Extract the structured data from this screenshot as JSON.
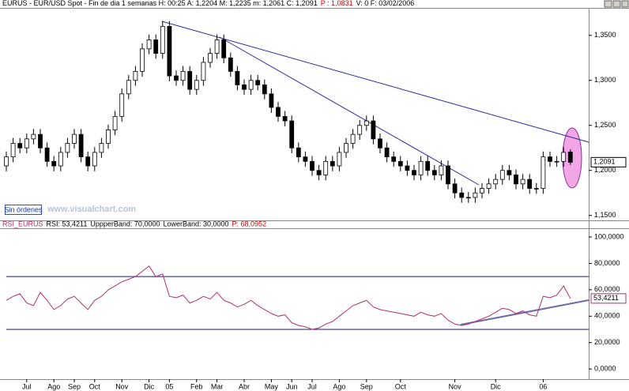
{
  "chart_data": [
    {
      "type": "candlestick",
      "title": "EURUS - EUR/USD Spot - Fin de dia 1 semanas H: 00:25 A: 1,2204 M: 1,2235 m: 1,2061 C: 1,2091",
      "title_extra": "P : 1,0831",
      "title_tail": "V: 0 F: 03/02/2006",
      "button": "Sin órdenes",
      "watermark": "www.visualchart.com",
      "up_color": "#ffffff",
      "down_color": "#000000",
      "ylim": [
        1.148,
        1.3805
      ],
      "yticks": [
        {
          "value": 1.15,
          "label": "1,1500"
        },
        {
          "value": 1.2,
          "label": "1,2000"
        },
        {
          "value": 1.25,
          "label": "1,2500"
        },
        {
          "value": 1.3,
          "label": "1,3000"
        },
        {
          "value": 1.35,
          "label": "1,3500"
        }
      ],
      "last_price": {
        "value": 1.2091,
        "label": "1,2091"
      },
      "ohlc": [
        [
          1.205,
          1.221,
          1.199,
          1.215
        ],
        [
          1.215,
          1.236,
          1.209,
          1.23
        ],
        [
          1.23,
          1.236,
          1.219,
          1.225
        ],
        [
          1.225,
          1.241,
          1.219,
          1.235
        ],
        [
          1.235,
          1.246,
          1.229,
          1.24
        ],
        [
          1.24,
          1.246,
          1.219,
          1.225
        ],
        [
          1.225,
          1.231,
          1.204,
          1.21
        ],
        [
          1.21,
          1.216,
          1.199,
          1.205
        ],
        [
          1.205,
          1.226,
          1.199,
          1.22
        ],
        [
          1.22,
          1.236,
          1.214,
          1.23
        ],
        [
          1.23,
          1.246,
          1.224,
          1.24
        ],
        [
          1.24,
          1.246,
          1.209,
          1.215
        ],
        [
          1.215,
          1.221,
          1.199,
          1.205
        ],
        [
          1.205,
          1.226,
          1.199,
          1.22
        ],
        [
          1.22,
          1.236,
          1.214,
          1.23
        ],
        [
          1.23,
          1.251,
          1.224,
          1.245
        ],
        [
          1.245,
          1.266,
          1.239,
          1.26
        ],
        [
          1.26,
          1.291,
          1.254,
          1.285
        ],
        [
          1.285,
          1.306,
          1.279,
          1.3
        ],
        [
          1.3,
          1.316,
          1.294,
          1.31
        ],
        [
          1.31,
          1.341,
          1.304,
          1.335
        ],
        [
          1.335,
          1.351,
          1.329,
          1.345
        ],
        [
          1.345,
          1.351,
          1.324,
          1.33
        ],
        [
          1.33,
          1.366,
          1.324,
          1.36
        ],
        [
          1.36,
          1.366,
          1.299,
          1.305
        ],
        [
          1.305,
          1.311,
          1.294,
          1.3
        ],
        [
          1.3,
          1.316,
          1.294,
          1.31
        ],
        [
          1.31,
          1.316,
          1.284,
          1.29
        ],
        [
          1.29,
          1.306,
          1.284,
          1.3
        ],
        [
          1.3,
          1.326,
          1.294,
          1.32
        ],
        [
          1.32,
          1.336,
          1.314,
          1.33
        ],
        [
          1.33,
          1.351,
          1.324,
          1.345
        ],
        [
          1.345,
          1.351,
          1.319,
          1.325
        ],
        [
          1.325,
          1.331,
          1.304,
          1.31
        ],
        [
          1.31,
          1.316,
          1.289,
          1.295
        ],
        [
          1.295,
          1.301,
          1.284,
          1.29
        ],
        [
          1.29,
          1.306,
          1.284,
          1.3
        ],
        [
          1.3,
          1.306,
          1.289,
          1.295
        ],
        [
          1.295,
          1.301,
          1.279,
          1.285
        ],
        [
          1.285,
          1.291,
          1.264,
          1.27
        ],
        [
          1.27,
          1.276,
          1.254,
          1.26
        ],
        [
          1.26,
          1.266,
          1.249,
          1.255
        ],
        [
          1.255,
          1.261,
          1.219,
          1.225
        ],
        [
          1.225,
          1.231,
          1.209,
          1.215
        ],
        [
          1.215,
          1.221,
          1.204,
          1.21
        ],
        [
          1.21,
          1.216,
          1.194,
          1.2
        ],
        [
          1.2,
          1.206,
          1.189,
          1.195
        ],
        [
          1.195,
          1.216,
          1.189,
          1.21
        ],
        [
          1.21,
          1.216,
          1.199,
          1.205
        ],
        [
          1.205,
          1.226,
          1.199,
          1.22
        ],
        [
          1.22,
          1.236,
          1.214,
          1.23
        ],
        [
          1.23,
          1.246,
          1.224,
          1.24
        ],
        [
          1.24,
          1.256,
          1.234,
          1.25
        ],
        [
          1.25,
          1.261,
          1.244,
          1.255
        ],
        [
          1.255,
          1.261,
          1.229,
          1.235
        ],
        [
          1.235,
          1.241,
          1.219,
          1.225
        ],
        [
          1.225,
          1.231,
          1.209,
          1.215
        ],
        [
          1.215,
          1.221,
          1.204,
          1.21
        ],
        [
          1.21,
          1.216,
          1.199,
          1.205
        ],
        [
          1.205,
          1.211,
          1.194,
          1.2
        ],
        [
          1.2,
          1.206,
          1.189,
          1.195
        ],
        [
          1.195,
          1.216,
          1.189,
          1.21
        ],
        [
          1.21,
          1.216,
          1.194,
          1.2
        ],
        [
          1.2,
          1.206,
          1.189,
          1.195
        ],
        [
          1.195,
          1.211,
          1.189,
          1.205
        ],
        [
          1.205,
          1.211,
          1.179,
          1.185
        ],
        [
          1.185,
          1.191,
          1.169,
          1.175
        ],
        [
          1.175,
          1.181,
          1.164,
          1.17
        ],
        [
          1.17,
          1.176,
          1.164,
          1.17
        ],
        [
          1.17,
          1.181,
          1.164,
          1.175
        ],
        [
          1.175,
          1.186,
          1.169,
          1.18
        ],
        [
          1.18,
          1.191,
          1.174,
          1.185
        ],
        [
          1.185,
          1.196,
          1.179,
          1.19
        ],
        [
          1.19,
          1.206,
          1.184,
          1.2
        ],
        [
          1.2,
          1.206,
          1.189,
          1.195
        ],
        [
          1.195,
          1.201,
          1.179,
          1.185
        ],
        [
          1.185,
          1.196,
          1.179,
          1.19
        ],
        [
          1.19,
          1.196,
          1.174,
          1.18
        ],
        [
          1.18,
          1.186,
          1.174,
          1.18
        ],
        [
          1.18,
          1.221,
          1.174,
          1.215
        ],
        [
          1.215,
          1.221,
          1.204,
          1.21
        ],
        [
          1.21,
          1.216,
          1.204,
          1.21
        ],
        [
          1.21,
          1.226,
          1.204,
          1.22
        ],
        [
          1.2204,
          1.2235,
          1.2061,
          1.2091
        ]
      ]
    },
    {
      "type": "line",
      "title": "RSI_EURUS",
      "title_parts": [
        "RSI: 53,4211",
        "UppperBand: 70,0000",
        "LowerBand: 30,0000"
      ],
      "title_extra": "P: 68,0952",
      "color": "#b03070",
      "band_color": "#1a1a6e",
      "bands": [
        70,
        30
      ],
      "ylim": [
        -7.7,
        106
      ],
      "yticks": [
        {
          "value": 0,
          "label": "0,0000"
        },
        {
          "value": 20,
          "label": "20,0000"
        },
        {
          "value": 40,
          "label": "40,0000"
        },
        {
          "value": 60,
          "label": "60,0000"
        },
        {
          "value": 80,
          "label": "80,0000"
        },
        {
          "value": 100,
          "label": "100,0000"
        }
      ],
      "last_value": {
        "value": 53.4211,
        "label": "53,4211"
      },
      "categories": [
        null,
        null,
        null,
        "Jul",
        null,
        null,
        null,
        "Ago",
        null,
        null,
        "Sep",
        null,
        null,
        "Oct",
        null,
        null,
        null,
        "Nov",
        null,
        null,
        null,
        "Dic",
        null,
        null,
        "05",
        null,
        null,
        null,
        "Feb",
        null,
        null,
        "Mar",
        null,
        null,
        null,
        "Abr",
        null,
        null,
        null,
        "May",
        null,
        null,
        "Jun",
        null,
        null,
        "Jul",
        null,
        null,
        null,
        "Ago",
        null,
        null,
        null,
        "Sep",
        null,
        null,
        null,
        null,
        "Oct",
        null,
        null,
        null,
        null,
        null,
        null,
        null,
        "Nov",
        null,
        null,
        null,
        null,
        null,
        "Dic",
        null,
        null,
        null,
        null,
        null,
        null,
        "06",
        null,
        null,
        null,
        null
      ],
      "values": [
        52,
        55,
        57,
        50,
        48,
        58,
        52,
        45,
        48,
        53,
        55,
        50,
        45,
        52,
        55,
        60,
        63,
        66,
        68,
        70,
        74,
        78,
        70,
        72,
        55,
        54,
        56,
        50,
        52,
        55,
        53,
        58,
        52,
        50,
        47,
        49,
        52,
        48,
        45,
        42,
        40,
        41,
        35,
        33,
        32,
        30,
        31,
        34,
        36,
        40,
        44,
        48,
        50,
        52,
        47,
        45,
        44,
        43,
        42,
        41,
        40,
        43,
        41,
        40,
        42,
        37,
        34,
        33,
        34,
        36,
        38,
        40,
        43,
        46,
        45,
        42,
        44,
        41,
        40,
        55,
        54,
        56,
        63,
        53.4211
      ]
    }
  ]
}
